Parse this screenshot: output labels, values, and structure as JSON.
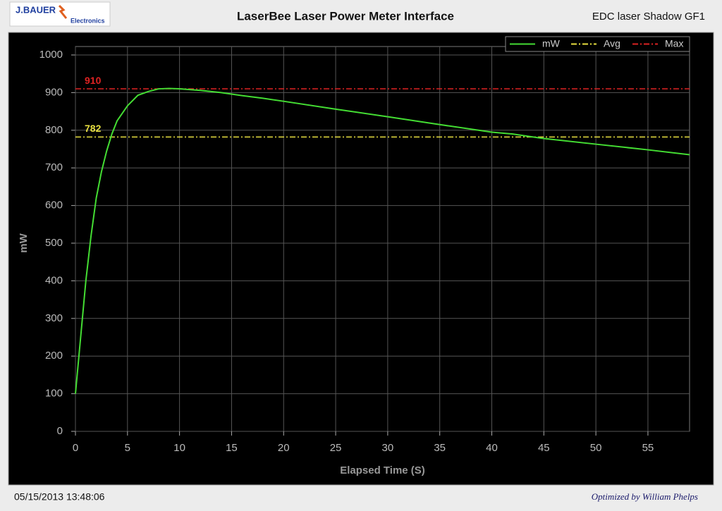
{
  "header": {
    "logo": "J.BAUER",
    "logo_sub": "Electronics",
    "title": "LaserBee Laser Power Meter Interface",
    "device": "EDC laser Shadow GF1"
  },
  "footer": {
    "timestamp": "05/15/2013 13:48:06",
    "credit": "Optimized by William Phelps"
  },
  "chart_data": {
    "type": "line",
    "xlabel": "Elapsed Time (S)",
    "ylabel": "mW",
    "xlim": [
      0,
      59
    ],
    "ylim": [
      0,
      1000
    ],
    "xticks": [
      0,
      5,
      10,
      15,
      20,
      25,
      30,
      35,
      40,
      45,
      50,
      55
    ],
    "yticks": [
      0,
      100,
      200,
      300,
      400,
      500,
      600,
      700,
      800,
      900,
      1000
    ],
    "grid": true,
    "legend": "top-right",
    "series": [
      {
        "name": "mW",
        "color": "#44dd33",
        "x": [
          0,
          0.5,
          1,
          1.5,
          2,
          2.5,
          3,
          3.5,
          4,
          5,
          6,
          7,
          8,
          9,
          10,
          12,
          14,
          16,
          18,
          20,
          25,
          30,
          35,
          40,
          42,
          45,
          50,
          55,
          59
        ],
        "values": [
          100,
          250,
          400,
          520,
          620,
          690,
          745,
          790,
          825,
          865,
          893,
          903,
          910,
          911,
          910,
          906,
          900,
          892,
          885,
          877,
          856,
          836,
          815,
          795,
          790,
          778,
          763,
          748,
          735
        ]
      }
    ],
    "reference_lines": [
      {
        "name": "Avg",
        "value": 782,
        "color": "#e8e040"
      },
      {
        "name": "Max",
        "value": 910,
        "color": "#dd2222"
      }
    ]
  }
}
